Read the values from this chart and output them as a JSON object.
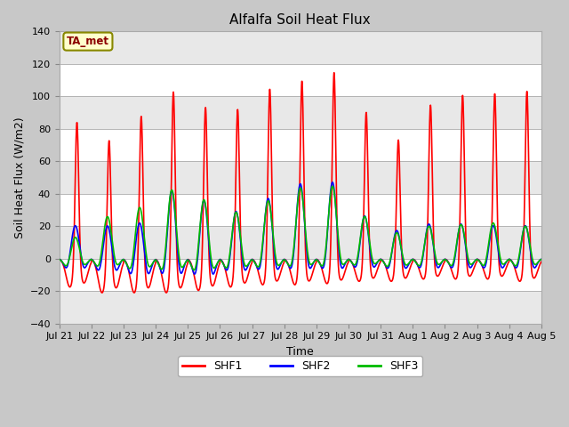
{
  "title": "Alfalfa Soil Heat Flux",
  "xlabel": "Time",
  "ylabel": "Soil Heat Flux (W/m2)",
  "ylim": [
    -40,
    140
  ],
  "yticks": [
    -40,
    -20,
    0,
    20,
    40,
    60,
    80,
    100,
    120,
    140
  ],
  "x_tick_labels": [
    "Jul 21",
    "Jul 22",
    "Jul 23",
    "Jul 24",
    "Jul 25",
    "Jul 26",
    "Jul 27",
    "Jul 28",
    "Jul 29",
    "Jul 30",
    "Jul 31",
    "Aug 1",
    "Aug 2",
    "Aug 3",
    "Aug 4",
    "Aug 5"
  ],
  "shf1_color": "#ff0000",
  "shf2_color": "#0000ff",
  "shf3_color": "#00bb00",
  "fig_bg_color": "#c8c8c8",
  "plot_bg_color": "#ffffff",
  "stripe_color": "#e8e8e8",
  "annotation_text": "TA_met",
  "annotation_bg": "#ffffcc",
  "annotation_border": "#888800",
  "line_width": 1.2,
  "shf1_peaks": [
    90,
    80,
    95,
    110,
    100,
    98,
    110,
    115,
    120,
    95,
    78,
    99,
    105,
    106,
    108
  ],
  "shf1_troughs": [
    -25,
    -30,
    -30,
    -30,
    -28,
    -25,
    -23,
    -23,
    -22,
    -20,
    -20,
    -18,
    -18,
    -18,
    -20
  ],
  "shf2_peaks": [
    21,
    21,
    23,
    43,
    37,
    30,
    38,
    47,
    48,
    27,
    18,
    22,
    22,
    21,
    21
  ],
  "shf2_troughs": [
    -10,
    -12,
    -15,
    -17,
    -17,
    -13,
    -13,
    -13,
    -13,
    -10,
    -10,
    -10,
    -10,
    -10,
    -10
  ],
  "shf3_peaks": [
    14,
    27,
    33,
    44,
    38,
    30,
    37,
    45,
    46,
    27,
    17,
    21,
    22,
    23,
    21
  ],
  "shf3_troughs": [
    -8,
    -10,
    -13,
    -15,
    -15,
    -12,
    -12,
    -12,
    -12,
    -9,
    -9,
    -9,
    -9,
    -9,
    -9
  ]
}
